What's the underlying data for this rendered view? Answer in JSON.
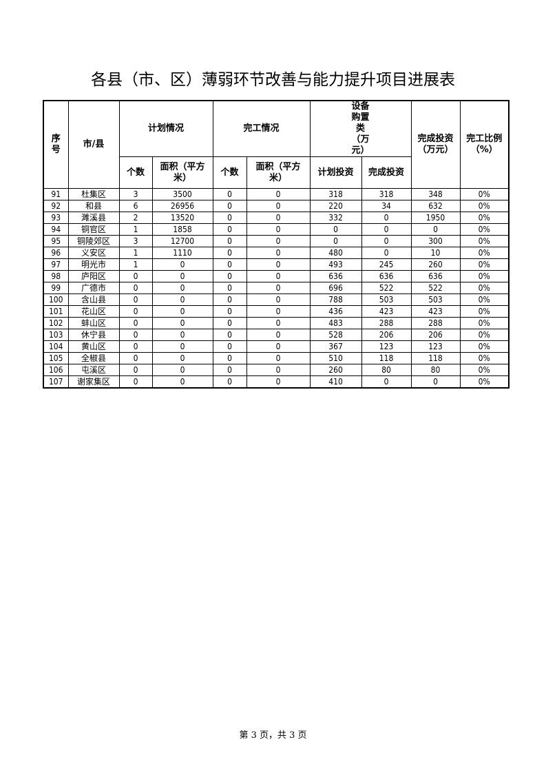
{
  "title": "各县（市、区）薄弱环节改善与能力提升项目进展表",
  "headers": {
    "seq": "序号",
    "city": "市/县",
    "plan": "计划情况",
    "done": "完工情况",
    "equip": "设备购置类（万元）",
    "invest": "完成投资（万元）",
    "ratio": "完工比例（%）",
    "plan_count": "个数",
    "plan_area": "面积（平方米）",
    "done_count": "个数",
    "done_area": "面积（平方米）",
    "equip_plan": "计划投资",
    "equip_done": "完成投资"
  },
  "rows": [
    [
      "91",
      "杜集区",
      "3",
      "3500",
      "0",
      "0",
      "318",
      "318",
      "348",
      "0%"
    ],
    [
      "92",
      "和县",
      "6",
      "26956",
      "0",
      "0",
      "220",
      "34",
      "632",
      "0%"
    ],
    [
      "93",
      "濉溪县",
      "2",
      "13520",
      "0",
      "0",
      "332",
      "0",
      "1950",
      "0%"
    ],
    [
      "94",
      "铜官区",
      "1",
      "1858",
      "0",
      "0",
      "0",
      "0",
      "0",
      "0%"
    ],
    [
      "95",
      "铜陵郊区",
      "3",
      "12700",
      "0",
      "0",
      "0",
      "0",
      "300",
      "0%"
    ],
    [
      "96",
      "义安区",
      "1",
      "1110",
      "0",
      "0",
      "480",
      "0",
      "10",
      "0%"
    ],
    [
      "97",
      "明光市",
      "1",
      "0",
      "0",
      "0",
      "493",
      "245",
      "260",
      "0%"
    ],
    [
      "98",
      "庐阳区",
      "0",
      "0",
      "0",
      "0",
      "636",
      "636",
      "636",
      "0%"
    ],
    [
      "99",
      "广德市",
      "0",
      "0",
      "0",
      "0",
      "696",
      "522",
      "522",
      "0%"
    ],
    [
      "100",
      "含山县",
      "0",
      "0",
      "0",
      "0",
      "788",
      "503",
      "503",
      "0%"
    ],
    [
      "101",
      "花山区",
      "0",
      "0",
      "0",
      "0",
      "436",
      "423",
      "423",
      "0%"
    ],
    [
      "102",
      "蚌山区",
      "0",
      "0",
      "0",
      "0",
      "483",
      "288",
      "288",
      "0%"
    ],
    [
      "103",
      "休宁县",
      "0",
      "0",
      "0",
      "0",
      "528",
      "206",
      "206",
      "0%"
    ],
    [
      "104",
      "黄山区",
      "0",
      "0",
      "0",
      "0",
      "367",
      "123",
      "123",
      "0%"
    ],
    [
      "105",
      "全椒县",
      "0",
      "0",
      "0",
      "0",
      "510",
      "118",
      "118",
      "0%"
    ],
    [
      "106",
      "屯溪区",
      "0",
      "0",
      "0",
      "0",
      "260",
      "80",
      "80",
      "0%"
    ],
    [
      "107",
      "谢家集区",
      "0",
      "0",
      "0",
      "0",
      "410",
      "0",
      "0",
      "0%"
    ]
  ],
  "footer": "第 3 页，共 3 页"
}
